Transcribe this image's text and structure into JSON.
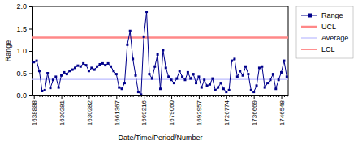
{
  "chart_data": {
    "type": "line",
    "xlabel": "Date/Time/Period/Number",
    "ylabel": "Range",
    "categories": [
      "1638888",
      null,
      null,
      null,
      null,
      null,
      null,
      null,
      null,
      null,
      "1630281",
      null,
      null,
      null,
      null,
      null,
      null,
      null,
      null,
      null,
      "1630282",
      null,
      null,
      null,
      null,
      null,
      null,
      null,
      null,
      null,
      "1661367",
      null,
      null,
      null,
      null,
      null,
      null,
      null,
      null,
      null,
      "1669216",
      null,
      null,
      null,
      null,
      null,
      null,
      null,
      null,
      null,
      "1679060",
      null,
      null,
      null,
      null,
      null,
      null,
      null,
      null,
      null,
      "1692957",
      null,
      null,
      null,
      null,
      null,
      null,
      null,
      null,
      null,
      "1726774",
      null,
      null,
      null,
      null,
      null,
      null,
      null,
      null,
      null,
      "1736669",
      null,
      null,
      null,
      null,
      null,
      null,
      null,
      null,
      null,
      "1746548",
      null,
      null
    ],
    "series": [
      {
        "name": "Range",
        "color": "#00008B",
        "marker": "square",
        "values": [
          0.75,
          0.78,
          0.55,
          0.1,
          0.12,
          0.5,
          0.17,
          0.35,
          0.42,
          0.18,
          0.45,
          0.52,
          0.48,
          0.55,
          0.58,
          0.62,
          0.67,
          0.65,
          0.72,
          0.68,
          0.55,
          0.62,
          0.58,
          0.65,
          0.7,
          0.72,
          0.68,
          0.72,
          0.65,
          0.55,
          0.48,
          0.18,
          0.15,
          0.28,
          1.14,
          1.45,
          0.82,
          0.45,
          0.08,
          0.02,
          1.32,
          1.88,
          0.48,
          0.38,
          0.65,
          0.92,
          0.15,
          1.02,
          0.62,
          0.42,
          0.35,
          0.28,
          0.38,
          0.55,
          0.42,
          0.35,
          0.52,
          0.38,
          0.48,
          0.28,
          0.42,
          0.18,
          0.35,
          0.22,
          0.25,
          0.38,
          0.12,
          0.18,
          0.28,
          0.15,
          0.08,
          0.12,
          0.78,
          0.82,
          0.42,
          0.55,
          0.45,
          0.65,
          0.48,
          0.12,
          0.08,
          0.22,
          0.62,
          0.65,
          0.18,
          0.28,
          0.35,
          0.48,
          0.15,
          0.35,
          0.52,
          0.78,
          0.42
        ]
      }
    ],
    "reference_lines": [
      {
        "name": "UCL",
        "value": 1.3,
        "color": "#FF8888"
      },
      {
        "name": "Average",
        "value": 0.36,
        "color": "#BBBBFF"
      },
      {
        "name": "LCL",
        "value": 0.0,
        "color": "#FF4444"
      }
    ],
    "ylim": [
      0,
      2
    ],
    "yticks": [
      {
        "value": 0,
        "label": "0.0"
      },
      0.5,
      {
        "value": 1,
        "label": "1.0"
      },
      1.5,
      {
        "value": 2,
        "label": "2.0"
      }
    ],
    "grid": false,
    "legend": "right"
  }
}
